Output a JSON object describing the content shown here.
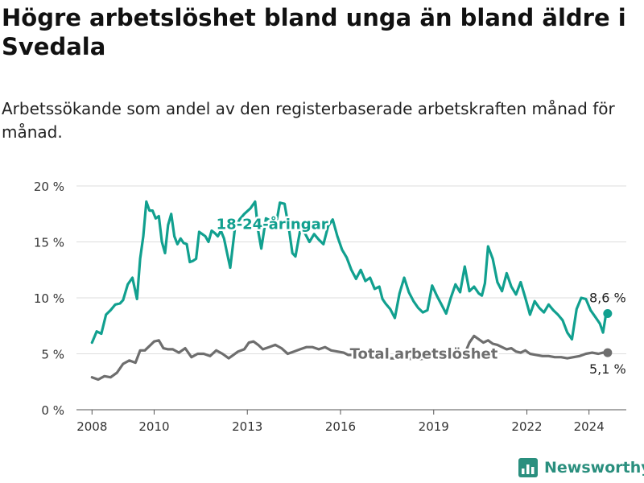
{
  "title": "Högre arbetslöshet bland unga än bland äldre i Svedala",
  "subtitle": "Arbetssökande som andel av den registerbaserade arbetskraften månad för månad.",
  "brand": {
    "name": "Newsworthy"
  },
  "colors": {
    "youth": "#11a08f",
    "total": "#6e6e6e",
    "grid": "#dddddd",
    "axis": "#555555"
  },
  "chart_data": {
    "type": "line",
    "title": "Högre arbetslöshet bland unga än bland äldre i Svedala",
    "ylim": [
      0,
      20
    ],
    "yticks": [
      0,
      5,
      10,
      15,
      20
    ],
    "ytick_labels": [
      "0 %",
      "5 %",
      "10 %",
      "15 %",
      "20 %"
    ],
    "xlim": [
      2007.5,
      2025.2
    ],
    "xticks": [
      2008,
      2010,
      2013,
      2016,
      2019,
      2022,
      2024
    ],
    "xtick_labels": [
      "2008",
      "2010",
      "2013",
      "2016",
      "2019",
      "2022",
      "2024"
    ],
    "grid": true,
    "series": [
      {
        "name": "18-24-åringar",
        "end_label": "8,6 %",
        "x": [
          2008.0,
          2008.15,
          2008.3,
          2008.45,
          2008.6,
          2008.75,
          2008.9,
          2009.0,
          2009.15,
          2009.3,
          2009.45,
          2009.55,
          2009.65,
          2009.75,
          2009.85,
          2009.95,
          2010.05,
          2010.15,
          2010.25,
          2010.35,
          2010.45,
          2010.55,
          2010.65,
          2010.75,
          2010.85,
          2010.95,
          2011.05,
          2011.15,
          2011.25,
          2011.35,
          2011.45,
          2011.55,
          2011.65,
          2011.75,
          2011.85,
          2011.95,
          2012.05,
          2012.15,
          2012.25,
          2012.35,
          2012.45,
          2012.6,
          2012.75,
          2012.9,
          2013.1,
          2013.25,
          2013.35,
          2013.45,
          2013.6,
          2013.75,
          2013.9,
          2014.05,
          2014.2,
          2014.35,
          2014.45,
          2014.55,
          2014.7,
          2014.85,
          2015.0,
          2015.15,
          2015.3,
          2015.45,
          2015.6,
          2015.75,
          2015.9,
          2016.05,
          2016.2,
          2016.35,
          2016.5,
          2016.65,
          2016.8,
          2016.95,
          2017.1,
          2017.25,
          2017.35,
          2017.45,
          2017.6,
          2017.75,
          2017.9,
          2018.05,
          2018.2,
          2018.35,
          2018.5,
          2018.65,
          2018.8,
          2018.95,
          2019.1,
          2019.25,
          2019.4,
          2019.55,
          2019.7,
          2019.85,
          2020.0,
          2020.15,
          2020.3,
          2020.45,
          2020.55,
          2020.65,
          2020.75,
          2020.9,
          2021.05,
          2021.2,
          2021.35,
          2021.5,
          2021.65,
          2021.8,
          2021.95,
          2022.1,
          2022.25,
          2022.4,
          2022.55,
          2022.7,
          2022.85,
          2023.0,
          2023.15,
          2023.3,
          2023.45,
          2023.6,
          2023.75,
          2023.9,
          2024.05,
          2024.2,
          2024.35,
          2024.45,
          2024.55,
          2024.6
        ],
        "values": [
          6.0,
          7.0,
          6.8,
          8.5,
          8.9,
          9.4,
          9.5,
          9.8,
          11.2,
          11.8,
          9.9,
          13.5,
          15.5,
          18.6,
          17.8,
          17.8,
          17.1,
          17.3,
          15.0,
          14.0,
          16.5,
          17.5,
          15.5,
          14.8,
          15.3,
          14.9,
          14.8,
          13.2,
          13.3,
          13.5,
          15.9,
          15.7,
          15.5,
          15.0,
          16.0,
          15.8,
          15.5,
          16.0,
          15.3,
          14.0,
          12.7,
          16.2,
          17.0,
          17.5,
          18.0,
          18.6,
          16.0,
          14.4,
          17.1,
          16.9,
          16.2,
          18.5,
          18.4,
          16.0,
          14.0,
          13.7,
          16.0,
          15.8,
          15.0,
          15.7,
          15.2,
          14.8,
          16.4,
          17.0,
          15.5,
          14.3,
          13.6,
          12.5,
          11.7,
          12.5,
          11.5,
          11.8,
          10.8,
          11.0,
          9.9,
          9.5,
          9.0,
          8.2,
          10.4,
          11.8,
          10.5,
          9.7,
          9.1,
          8.7,
          8.9,
          11.1,
          10.2,
          9.4,
          8.6,
          10.0,
          11.2,
          10.5,
          12.8,
          10.6,
          11.0,
          10.4,
          10.2,
          11.3,
          14.6,
          13.5,
          11.4,
          10.6,
          12.2,
          11.0,
          10.3,
          11.4,
          10.0,
          8.5,
          9.7,
          9.1,
          8.7,
          9.4,
          8.9,
          8.5,
          8.0,
          6.9,
          6.3,
          9.0,
          10.0,
          9.9,
          8.9,
          8.3,
          7.7,
          6.9,
          8.6,
          8.6
        ]
      },
      {
        "name": "Total arbetslöshet",
        "end_label": "5,1 %",
        "x": [
          2008.0,
          2008.2,
          2008.4,
          2008.6,
          2008.8,
          2009.0,
          2009.2,
          2009.4,
          2009.55,
          2009.7,
          2009.85,
          2010.0,
          2010.15,
          2010.3,
          2010.45,
          2010.6,
          2010.8,
          2011.0,
          2011.2,
          2011.4,
          2011.6,
          2011.8,
          2012.0,
          2012.2,
          2012.4,
          2012.55,
          2012.7,
          2012.9,
          2013.05,
          2013.2,
          2013.35,
          2013.5,
          2013.7,
          2013.9,
          2014.1,
          2014.3,
          2014.5,
          2014.7,
          2014.9,
          2015.1,
          2015.3,
          2015.5,
          2015.7,
          2015.9,
          2016.1,
          2016.25,
          2016.4,
          2016.6,
          2016.8,
          2017.0,
          2017.5,
          2018.0,
          2018.5,
          2019.0,
          2019.5,
          2020.0,
          2020.15,
          2020.3,
          2020.45,
          2020.6,
          2020.75,
          2020.9,
          2021.05,
          2021.2,
          2021.35,
          2021.5,
          2021.65,
          2021.8,
          2021.95,
          2022.1,
          2022.3,
          2022.5,
          2022.7,
          2022.9,
          2023.1,
          2023.3,
          2023.5,
          2023.7,
          2023.9,
          2024.1,
          2024.3,
          2024.45,
          2024.6
        ],
        "values": [
          2.9,
          2.7,
          3.0,
          2.9,
          3.3,
          4.1,
          4.4,
          4.2,
          5.3,
          5.3,
          5.7,
          6.1,
          6.2,
          5.5,
          5.4,
          5.4,
          5.1,
          5.5,
          4.7,
          5.0,
          5.0,
          4.8,
          5.3,
          5.0,
          4.6,
          4.9,
          5.2,
          5.4,
          6.0,
          6.1,
          5.8,
          5.4,
          5.6,
          5.8,
          5.5,
          5.0,
          5.2,
          5.4,
          5.6,
          5.6,
          5.4,
          5.6,
          5.3,
          5.2,
          5.1,
          4.9,
          4.9,
          4.9,
          4.7,
          4.8,
          4.6,
          4.6,
          4.5,
          4.7,
          4.8,
          5.0,
          6.0,
          6.6,
          6.3,
          6.0,
          6.2,
          5.9,
          5.8,
          5.6,
          5.4,
          5.5,
          5.2,
          5.1,
          5.3,
          5.0,
          4.9,
          4.8,
          4.8,
          4.7,
          4.7,
          4.6,
          4.7,
          4.8,
          5.0,
          5.1,
          5.0,
          5.1,
          5.1
        ]
      }
    ]
  }
}
